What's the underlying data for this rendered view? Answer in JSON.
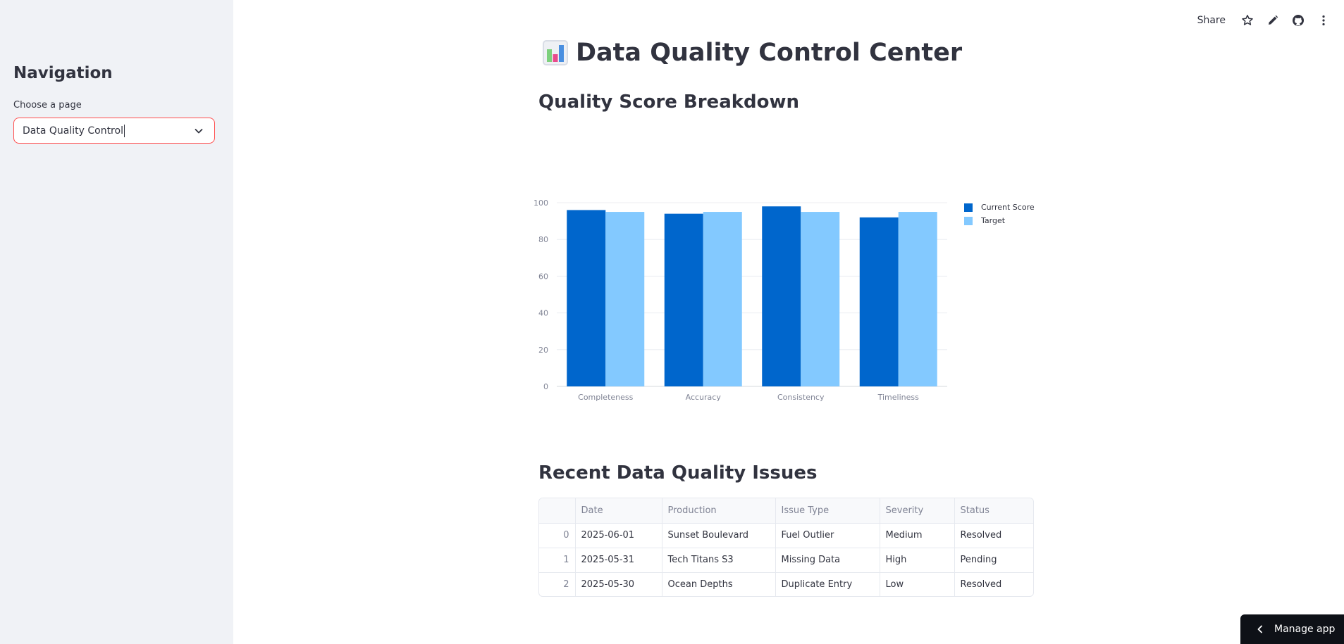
{
  "sidebar": {
    "title": "Navigation",
    "select_label": "Choose a page",
    "select_value": "Data Quality Control"
  },
  "toolbar": {
    "share_label": "Share"
  },
  "page": {
    "title": "Data Quality Control Center",
    "chart_heading": "Quality Score Breakdown",
    "issues_heading": "Recent Data Quality Issues"
  },
  "icons": {
    "title_icon": "bar-chart-emoji-icon",
    "star": "star-icon",
    "edit": "pencil-icon",
    "github": "github-icon",
    "menu": "kebab-menu-icon",
    "chevron": "chevron-down-icon",
    "manage_chevron": "chevron-left-icon"
  },
  "colors": {
    "current_score": "#0066cc",
    "target": "#83c9ff",
    "select_border": "#ff4b4b"
  },
  "chart_data": {
    "type": "bar",
    "categories": [
      "Completeness",
      "Accuracy",
      "Consistency",
      "Timeliness"
    ],
    "series": [
      {
        "name": "Current Score",
        "values": [
          96,
          94,
          98,
          92
        ]
      },
      {
        "name": "Target",
        "values": [
          95,
          95,
          95,
          95
        ]
      }
    ],
    "yticks": [
      "0",
      "20",
      "40",
      "60",
      "80",
      "100"
    ],
    "ylim": [
      0,
      100
    ],
    "grid": true,
    "legend": "top-right"
  },
  "table": {
    "columns": [
      "",
      "Date",
      "Production",
      "Issue Type",
      "Severity",
      "Status"
    ],
    "rows": [
      [
        "0",
        "2025-06-01",
        "Sunset Boulevard",
        "Fuel Outlier",
        "Medium",
        "Resolved"
      ],
      [
        "1",
        "2025-05-31",
        "Tech Titans S3",
        "Missing Data",
        "High",
        "Pending"
      ],
      [
        "2",
        "2025-05-30",
        "Ocean Depths",
        "Duplicate Entry",
        "Low",
        "Resolved"
      ]
    ]
  },
  "manage_app": {
    "label": "Manage app"
  }
}
